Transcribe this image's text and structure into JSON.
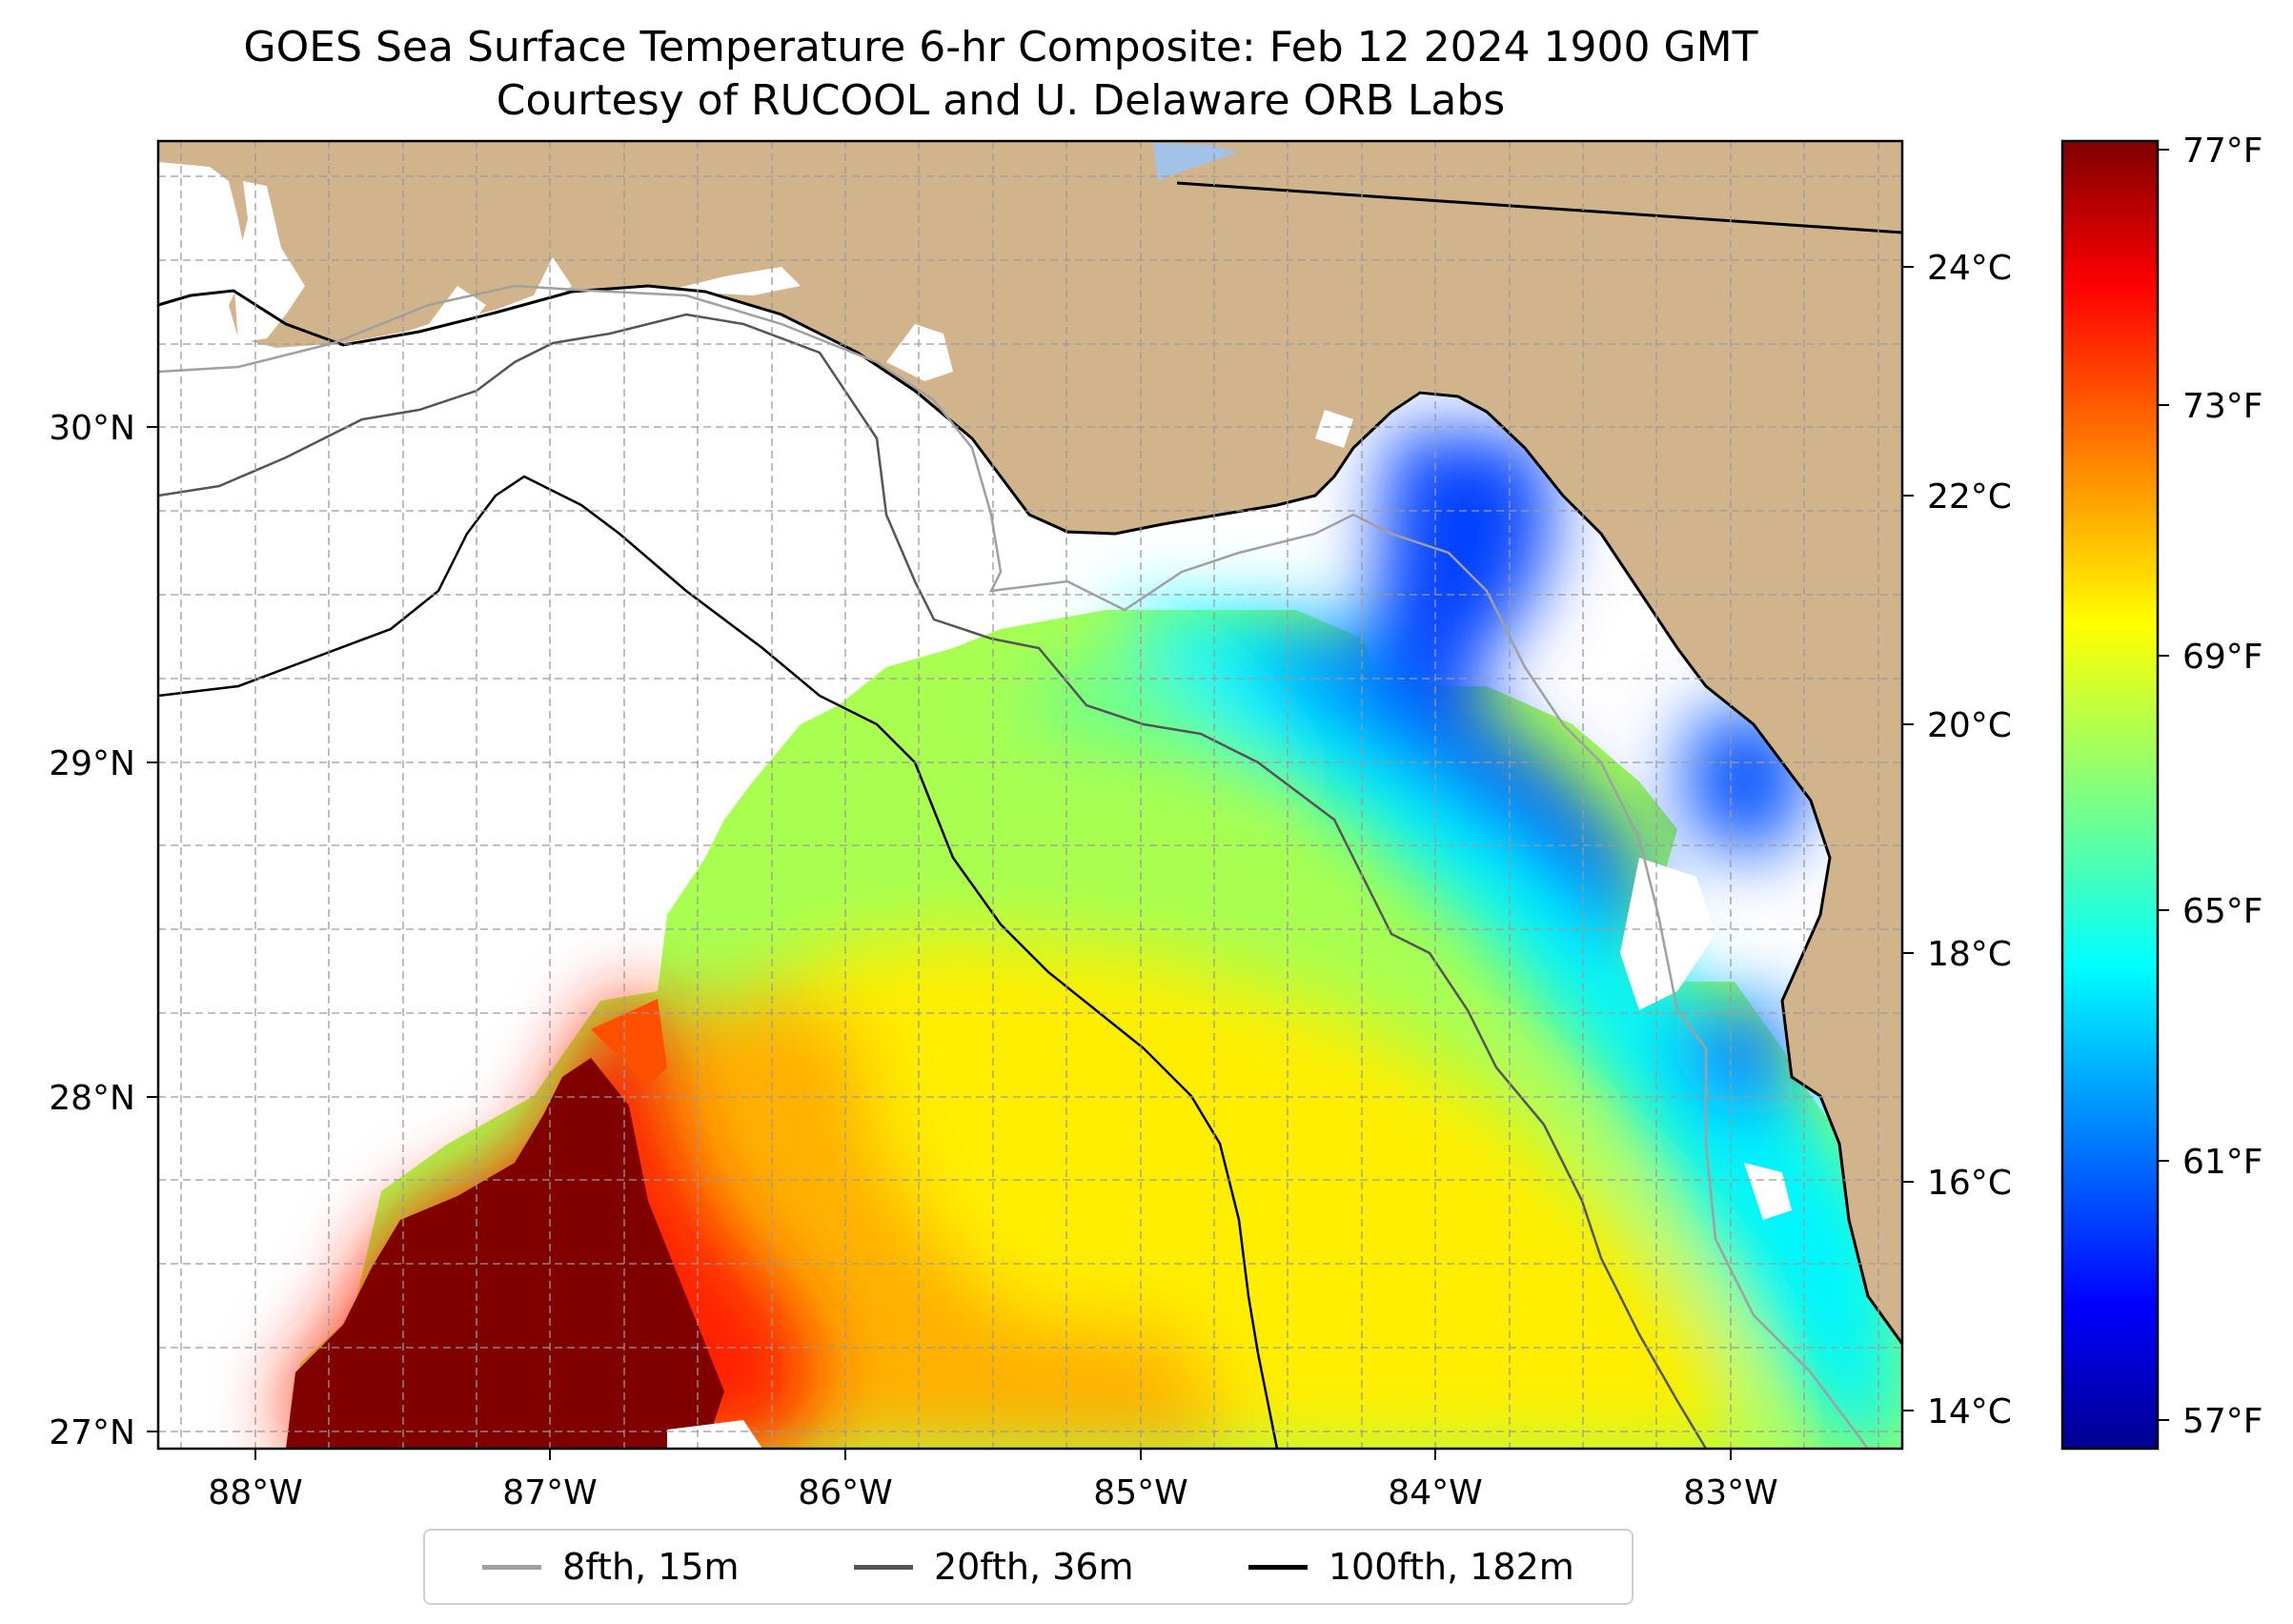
{
  "title_line1": "GOES Sea Surface Temperature 6-hr Composite: Feb 12 2024 1900 GMT",
  "title_line2": "Courtesy of RUCOOL and U. Delaware ORB Labs",
  "map": {
    "lon_ticks": [
      "88°W",
      "87°W",
      "86°W",
      "85°W",
      "84°W",
      "83°W"
    ],
    "lat_ticks": [
      "30°N",
      "29°N",
      "28°N",
      "27°N"
    ],
    "colors": {
      "land": "#d2b48c",
      "ocean_nodata": "#ffffff",
      "lake": "#a3c2e8",
      "isobath_8fth": "#a0a0a0",
      "isobath_20fth": "#555555",
      "isobath_100fth": "#000000"
    }
  },
  "colorbar": {
    "celsius_labels": [
      "24°C",
      "22°C",
      "20°C",
      "18°C",
      "16°C",
      "14°C"
    ],
    "fahrenheit_labels": [
      "77°F",
      "73°F",
      "69°F",
      "65°F",
      "61°F",
      "57°F"
    ],
    "colormap": "jet",
    "colors": [
      "#00008f",
      "#0000ff",
      "#0080ff",
      "#00ffff",
      "#80ff80",
      "#ffff00",
      "#ff8000",
      "#ff0000",
      "#800000"
    ]
  },
  "legend": {
    "items": [
      {
        "label": "8fth, 15m",
        "color": "#a0a0a0"
      },
      {
        "label": "20fth, 36m",
        "color": "#555555"
      },
      {
        "label": "100fth, 182m",
        "color": "#000000"
      }
    ]
  }
}
